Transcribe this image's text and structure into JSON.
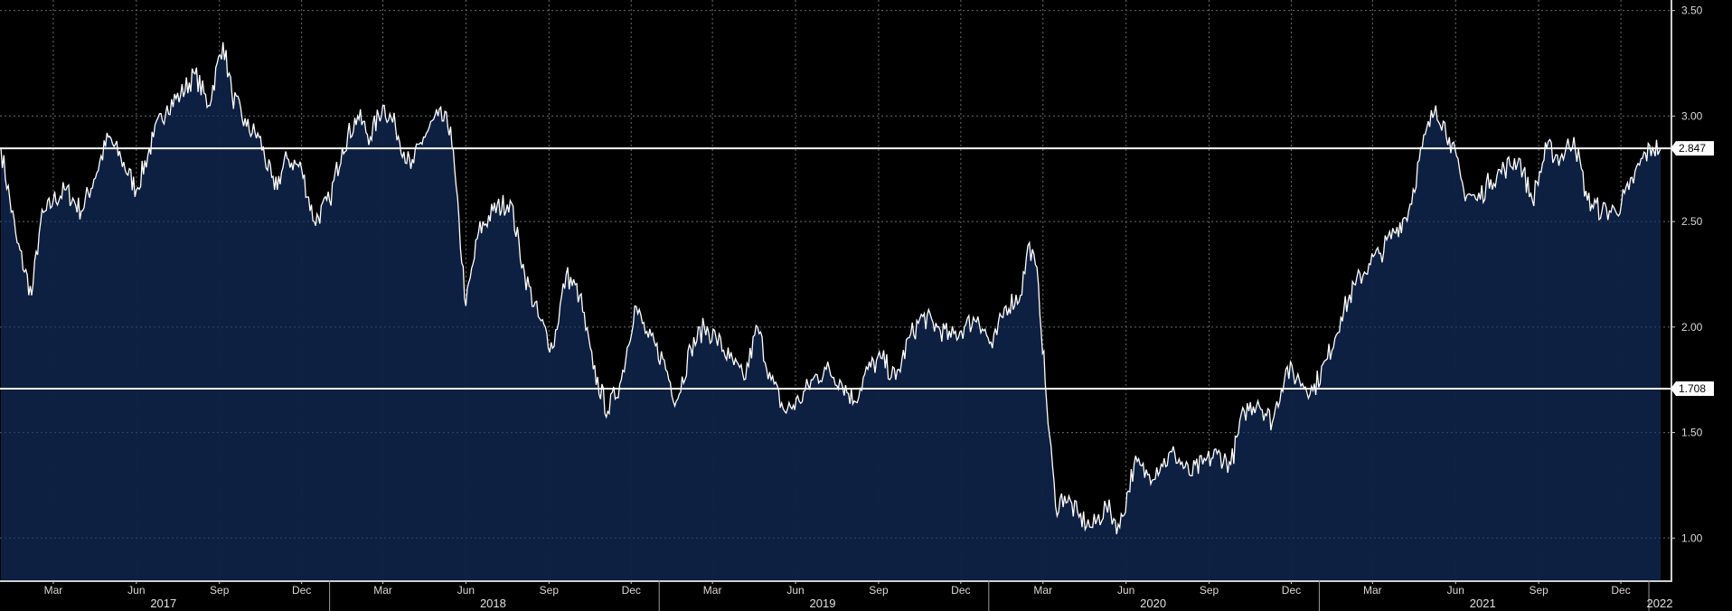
{
  "chart_data": {
    "type": "area",
    "title": "",
    "xlabel": "",
    "ylabel": "",
    "x_range": [
      "2017-01-01",
      "2022-01-25"
    ],
    "ylim": [
      0.8,
      3.55
    ],
    "y_ticks": [
      {
        "value": 1.0,
        "label": "1.00"
      },
      {
        "value": 1.5,
        "label": "1.50"
      },
      {
        "value": 2.0,
        "label": "2.00"
      },
      {
        "value": 2.5,
        "label": "2.50"
      },
      {
        "value": 3.0,
        "label": "3.00"
      },
      {
        "value": 3.5,
        "label": "3.50"
      }
    ],
    "month_ticks": [
      {
        "date": "2017-03-01",
        "label": "Mar"
      },
      {
        "date": "2017-06-01",
        "label": "Jun"
      },
      {
        "date": "2017-09-01",
        "label": "Sep"
      },
      {
        "date": "2017-12-01",
        "label": "Dec"
      },
      {
        "date": "2018-03-01",
        "label": "Mar"
      },
      {
        "date": "2018-06-01",
        "label": "Jun"
      },
      {
        "date": "2018-09-01",
        "label": "Sep"
      },
      {
        "date": "2018-12-01",
        "label": "Dec"
      },
      {
        "date": "2019-03-01",
        "label": "Mar"
      },
      {
        "date": "2019-06-01",
        "label": "Jun"
      },
      {
        "date": "2019-09-01",
        "label": "Sep"
      },
      {
        "date": "2019-12-01",
        "label": "Dec"
      },
      {
        "date": "2020-03-01",
        "label": "Mar"
      },
      {
        "date": "2020-06-01",
        "label": "Jun"
      },
      {
        "date": "2020-09-01",
        "label": "Sep"
      },
      {
        "date": "2020-12-01",
        "label": "Dec"
      },
      {
        "date": "2021-03-01",
        "label": "Mar"
      },
      {
        "date": "2021-06-01",
        "label": "Jun"
      },
      {
        "date": "2021-09-01",
        "label": "Sep"
      },
      {
        "date": "2021-12-01",
        "label": "Dec"
      }
    ],
    "year_labels": [
      {
        "year": "2017",
        "center": "2017-07-01"
      },
      {
        "year": "2018",
        "center": "2018-07-01"
      },
      {
        "year": "2019",
        "center": "2019-07-01"
      },
      {
        "year": "2020",
        "center": "2020-07-01"
      },
      {
        "year": "2021",
        "center": "2021-07-01"
      },
      {
        "year": "2022",
        "center": "2022-01-13"
      }
    ],
    "year_boundaries": [
      "2018-01-01",
      "2019-01-01",
      "2020-01-01",
      "2021-01-01",
      "2022-01-01"
    ],
    "reference_lines": [
      {
        "value": 2.847,
        "label": "2.847"
      },
      {
        "value": 1.708,
        "label": "1.708"
      }
    ],
    "series": [
      {
        "x": [
          "2017-01-02",
          "2017-01-20",
          "2017-02-05",
          "2017-02-15",
          "2017-03-01",
          "2017-03-15",
          "2017-04-01",
          "2017-04-15",
          "2017-05-01",
          "2017-05-15",
          "2017-06-01",
          "2017-06-20",
          "2017-07-05",
          "2017-07-20",
          "2017-08-05",
          "2017-08-20",
          "2017-09-05",
          "2017-09-15",
          "2017-10-01",
          "2017-10-15",
          "2017-11-01",
          "2017-11-15",
          "2017-12-01",
          "2017-12-15",
          "2018-01-01",
          "2018-01-15",
          "2018-02-01",
          "2018-02-15",
          "2018-03-01",
          "2018-03-15",
          "2018-04-01",
          "2018-04-15",
          "2018-05-01",
          "2018-05-15",
          "2018-06-01",
          "2018-06-15",
          "2018-07-01",
          "2018-07-20",
          "2018-08-05",
          "2018-08-20",
          "2018-09-05",
          "2018-09-20",
          "2018-10-05",
          "2018-10-20",
          "2018-11-05",
          "2018-11-20",
          "2018-12-05",
          "2018-12-20",
          "2019-01-05",
          "2019-01-20",
          "2019-02-05",
          "2019-02-20",
          "2019-03-05",
          "2019-03-20",
          "2019-04-05",
          "2019-04-20",
          "2019-05-05",
          "2019-05-20",
          "2019-06-05",
          "2019-06-20",
          "2019-07-05",
          "2019-07-20",
          "2019-08-05",
          "2019-08-20",
          "2019-09-05",
          "2019-09-20",
          "2019-10-05",
          "2019-10-20",
          "2019-11-05",
          "2019-11-20",
          "2019-12-05",
          "2019-12-20",
          "2020-01-05",
          "2020-01-20",
          "2020-02-05",
          "2020-02-15",
          "2020-02-25",
          "2020-03-05",
          "2020-03-15",
          "2020-03-25",
          "2020-04-10",
          "2020-04-25",
          "2020-05-10",
          "2020-05-25",
          "2020-06-10",
          "2020-06-25",
          "2020-07-10",
          "2020-07-25",
          "2020-08-10",
          "2020-08-25",
          "2020-09-10",
          "2020-09-25",
          "2020-10-10",
          "2020-10-25",
          "2020-11-10",
          "2020-11-25",
          "2020-12-10",
          "2020-12-25",
          "2021-01-10",
          "2021-01-25",
          "2021-02-10",
          "2021-02-25",
          "2021-03-10",
          "2021-03-25",
          "2021-04-10",
          "2021-04-25",
          "2021-05-10",
          "2021-05-25",
          "2021-06-10",
          "2021-06-25",
          "2021-07-10",
          "2021-07-25",
          "2021-08-10",
          "2021-08-25",
          "2021-09-10",
          "2021-09-25",
          "2021-10-10",
          "2021-10-25",
          "2021-11-10",
          "2021-11-25",
          "2021-12-10",
          "2021-12-25",
          "2022-01-05",
          "2022-01-14"
        ],
        "y": [
          2.85,
          2.4,
          2.15,
          2.5,
          2.6,
          2.65,
          2.55,
          2.7,
          2.9,
          2.8,
          2.65,
          2.9,
          3.05,
          3.1,
          3.2,
          3.05,
          3.35,
          3.1,
          2.95,
          2.9,
          2.65,
          2.8,
          2.75,
          2.5,
          2.6,
          2.85,
          3.0,
          2.9,
          3.05,
          2.95,
          2.75,
          2.9,
          3.0,
          2.95,
          2.1,
          2.45,
          2.55,
          2.6,
          2.25,
          2.05,
          1.9,
          2.25,
          2.15,
          1.8,
          1.6,
          1.75,
          2.1,
          1.95,
          1.85,
          1.65,
          1.9,
          2.0,
          1.95,
          1.85,
          1.75,
          2.0,
          1.75,
          1.6,
          1.65,
          1.75,
          1.8,
          1.75,
          1.65,
          1.8,
          1.85,
          1.75,
          1.95,
          2.05,
          2.0,
          1.95,
          2.0,
          2.05,
          1.9,
          2.1,
          2.15,
          2.4,
          2.2,
          1.65,
          1.15,
          1.2,
          1.1,
          1.05,
          1.15,
          1.05,
          1.35,
          1.3,
          1.35,
          1.4,
          1.3,
          1.35,
          1.4,
          1.35,
          1.6,
          1.65,
          1.55,
          1.8,
          1.75,
          1.7,
          1.85,
          2.05,
          2.2,
          2.3,
          2.35,
          2.45,
          2.55,
          2.85,
          3.05,
          2.9,
          2.65,
          2.6,
          2.7,
          2.75,
          2.8,
          2.6,
          2.85,
          2.8,
          2.9,
          2.6,
          2.55,
          2.55,
          2.65,
          2.8,
          2.85,
          2.847
        ]
      }
    ]
  }
}
